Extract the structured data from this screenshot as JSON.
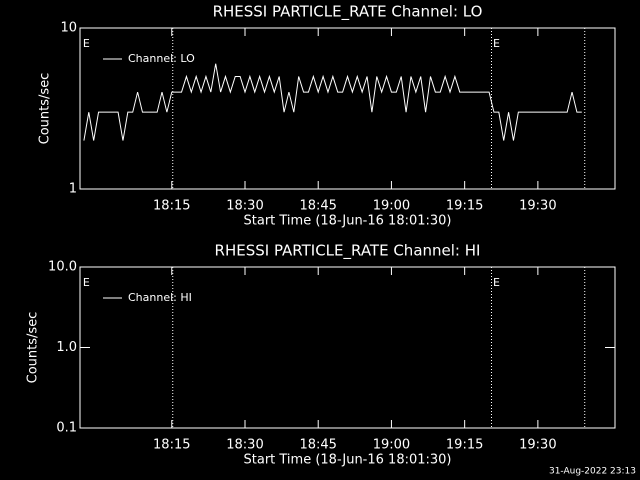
{
  "chart_data": [
    {
      "type": "line",
      "title": "RHESSI PARTICLE_RATE Channel: LO",
      "xlabel": "Start Time (18-Jun-16 18:01:30)",
      "ylabel": "Counts/sec",
      "log_y": true,
      "ylim": [
        1,
        10
      ],
      "yticks": [
        1,
        10
      ],
      "xlim": [
        1076.2,
        1185.8
      ],
      "xticks": [
        {
          "value": 1095,
          "label": "18:15"
        },
        {
          "value": 1110,
          "label": "18:30"
        },
        {
          "value": 1125,
          "label": "18:45"
        },
        {
          "value": 1140,
          "label": "19:00"
        },
        {
          "value": 1155,
          "label": "19:15"
        },
        {
          "value": 1170,
          "label": "19:30"
        }
      ],
      "vlines": [
        1095.2,
        1160.5,
        1179.6
      ],
      "annotations": [
        {
          "text": "E",
          "x": 1076.8
        },
        {
          "text": "E",
          "x": 1160.8
        }
      ],
      "legend": "upper left",
      "x": [
        1077,
        1078,
        1079,
        1080,
        1081,
        1082,
        1083,
        1084,
        1085,
        1086,
        1087,
        1088,
        1089,
        1090,
        1091,
        1092,
        1093,
        1094,
        1095,
        1096,
        1097,
        1098,
        1099,
        1100,
        1101,
        1102,
        1103,
        1104,
        1105,
        1106,
        1107,
        1108,
        1109,
        1110,
        1111,
        1112,
        1113,
        1114,
        1115,
        1116,
        1117,
        1118,
        1119,
        1120,
        1121,
        1122,
        1123,
        1124,
        1125,
        1126,
        1127,
        1128,
        1129,
        1130,
        1131,
        1132,
        1133,
        1134,
        1135,
        1136,
        1137,
        1138,
        1139,
        1140,
        1141,
        1142,
        1143,
        1144,
        1145,
        1146,
        1147,
        1148,
        1149,
        1150,
        1151,
        1152,
        1153,
        1154,
        1155,
        1156,
        1157,
        1158,
        1159,
        1160,
        1161,
        1162,
        1163,
        1164,
        1165,
        1166,
        1167,
        1168,
        1169,
        1170,
        1171,
        1172,
        1173,
        1174,
        1175,
        1176,
        1177,
        1178,
        1179
      ],
      "series": [
        {
          "name": "Channel: LO",
          "color": "#ffffff",
          "values": [
            2,
            3,
            2,
            3,
            3,
            3,
            3,
            3,
            2,
            3,
            3,
            4,
            3,
            3,
            3,
            3,
            4,
            3,
            4,
            4,
            4,
            5,
            4,
            5,
            4,
            5,
            4,
            6,
            4,
            5,
            4,
            5,
            5,
            4,
            5,
            4,
            5,
            4,
            5,
            4,
            5,
            3,
            4,
            3,
            5,
            4,
            4,
            5,
            4,
            5,
            4,
            5,
            4,
            4,
            5,
            4,
            5,
            4,
            5,
            3,
            5,
            4,
            5,
            4,
            4,
            5,
            3,
            5,
            4,
            5,
            3,
            5,
            4,
            4,
            5,
            4,
            5,
            4,
            4,
            4,
            4,
            4,
            4,
            4,
            3,
            3,
            2,
            3,
            2,
            3,
            3,
            3,
            3,
            3,
            3,
            3,
            3,
            3,
            3,
            3,
            4,
            3,
            3
          ]
        }
      ]
    },
    {
      "type": "line",
      "title": "RHESSI PARTICLE_RATE Channel: HI",
      "xlabel": "Start Time (18-Jun-16 18:01:30)",
      "ylabel": "Counts/sec",
      "log_y": true,
      "ylim": [
        0.1,
        10
      ],
      "yticks": [
        0.1,
        {
          "value": 1,
          "label": "1.0"
        },
        {
          "value": 10,
          "label": "10.0"
        }
      ],
      "xlim": [
        1076.2,
        1185.8
      ],
      "xticks": [
        {
          "value": 1095,
          "label": "18:15"
        },
        {
          "value": 1110,
          "label": "18:30"
        },
        {
          "value": 1125,
          "label": "18:45"
        },
        {
          "value": 1140,
          "label": "19:00"
        },
        {
          "value": 1155,
          "label": "19:15"
        },
        {
          "value": 1170,
          "label": "19:30"
        }
      ],
      "vlines": [
        1095.2,
        1160.5,
        1179.6
      ],
      "annotations": [
        {
          "text": "E",
          "x": 1076.8
        },
        {
          "text": "E",
          "x": 1160.8
        }
      ],
      "legend": "upper left",
      "x": [],
      "series": [
        {
          "name": "Channel: HI",
          "color": "#ffffff",
          "values": []
        }
      ]
    }
  ],
  "footer": "31-Aug-2022 23:13"
}
